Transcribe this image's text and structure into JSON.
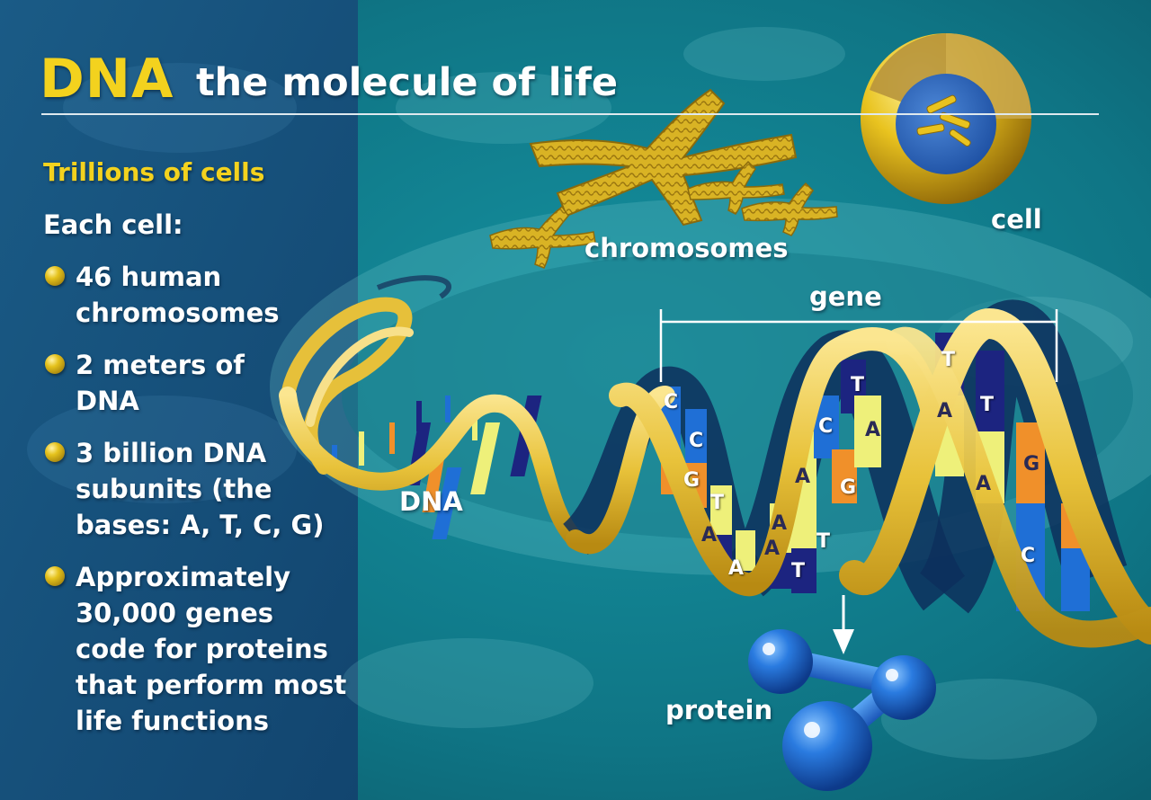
{
  "title": {
    "highlight": "DNA",
    "rest": "the molecule of life"
  },
  "sidebar": {
    "subheading": "Trillions of cells",
    "intro": "Each cell:",
    "bullets": [
      {
        "lines": [
          "46 human",
          "chromosomes"
        ]
      },
      {
        "lines": [
          "2 meters of",
          "DNA"
        ]
      },
      {
        "lines": [
          "3 billion DNA",
          "subunits (the",
          "bases: A, T, C, G)"
        ]
      },
      {
        "lines": [
          "Approximately",
          "30,000 genes",
          "code for proteins",
          "that perform most",
          "life functions"
        ]
      }
    ]
  },
  "labels": {
    "chromosomes": "chromosomes",
    "cell": "cell",
    "gene": "gene",
    "dna": "DNA",
    "protein": "protein"
  },
  "bases": [
    "C",
    "C",
    "G",
    "T",
    "A",
    "A",
    "A",
    "T",
    "A",
    "C",
    "A",
    "T",
    "T",
    "G",
    "A",
    "T",
    "T",
    "A",
    "G",
    "C",
    "A",
    "T"
  ],
  "colors": {
    "accent_yellow": "#f3d21e",
    "background_teal": "#0e6f7e",
    "sidebar_blue": "#1a4f7e",
    "base_orange": "#f0902a",
    "base_blue": "#1f6fd6",
    "base_navy": "#1c2480",
    "base_pale": "#eef07a"
  }
}
